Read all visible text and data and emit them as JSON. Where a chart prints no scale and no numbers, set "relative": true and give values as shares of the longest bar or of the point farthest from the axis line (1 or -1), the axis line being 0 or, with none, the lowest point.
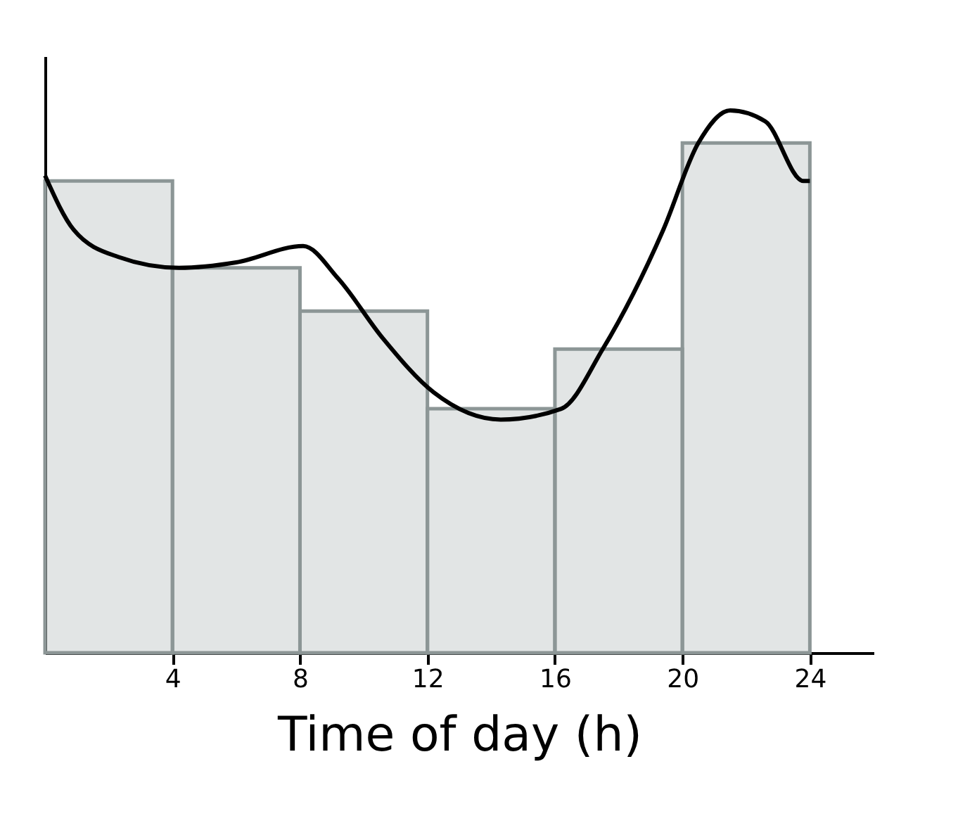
{
  "chart_data": {
    "type": "histogram",
    "relative": true,
    "xlabel": "Time of day (h)",
    "bins": [
      0,
      4,
      8,
      12,
      16,
      20,
      24
    ],
    "xlim": [
      0,
      26
    ],
    "xticks": [
      4,
      8,
      12,
      16,
      20,
      24
    ],
    "grid": false,
    "series": [
      {
        "color": "#8c9696",
        "values": [
          0.87,
          0.71,
          0.63,
          0.45,
          0.56,
          0.94
        ]
      },
      {
        "type": "line",
        "color": "#000000",
        "x": [
          0,
          0.9,
          2.3,
          4.2,
          6.0,
          8.1,
          9.2,
          10.6,
          12.2,
          14.3,
          16.2,
          17.5,
          19.4,
          20.5,
          21.5,
          22.6,
          23.8,
          24
        ],
        "values": [
          0.88,
          0.78,
          0.73,
          0.71,
          0.72,
          0.75,
          0.69,
          0.58,
          0.48,
          0.43,
          0.45,
          0.56,
          0.78,
          0.94,
          1,
          0.98,
          0.87,
          0.87
        ]
      }
    ]
  }
}
